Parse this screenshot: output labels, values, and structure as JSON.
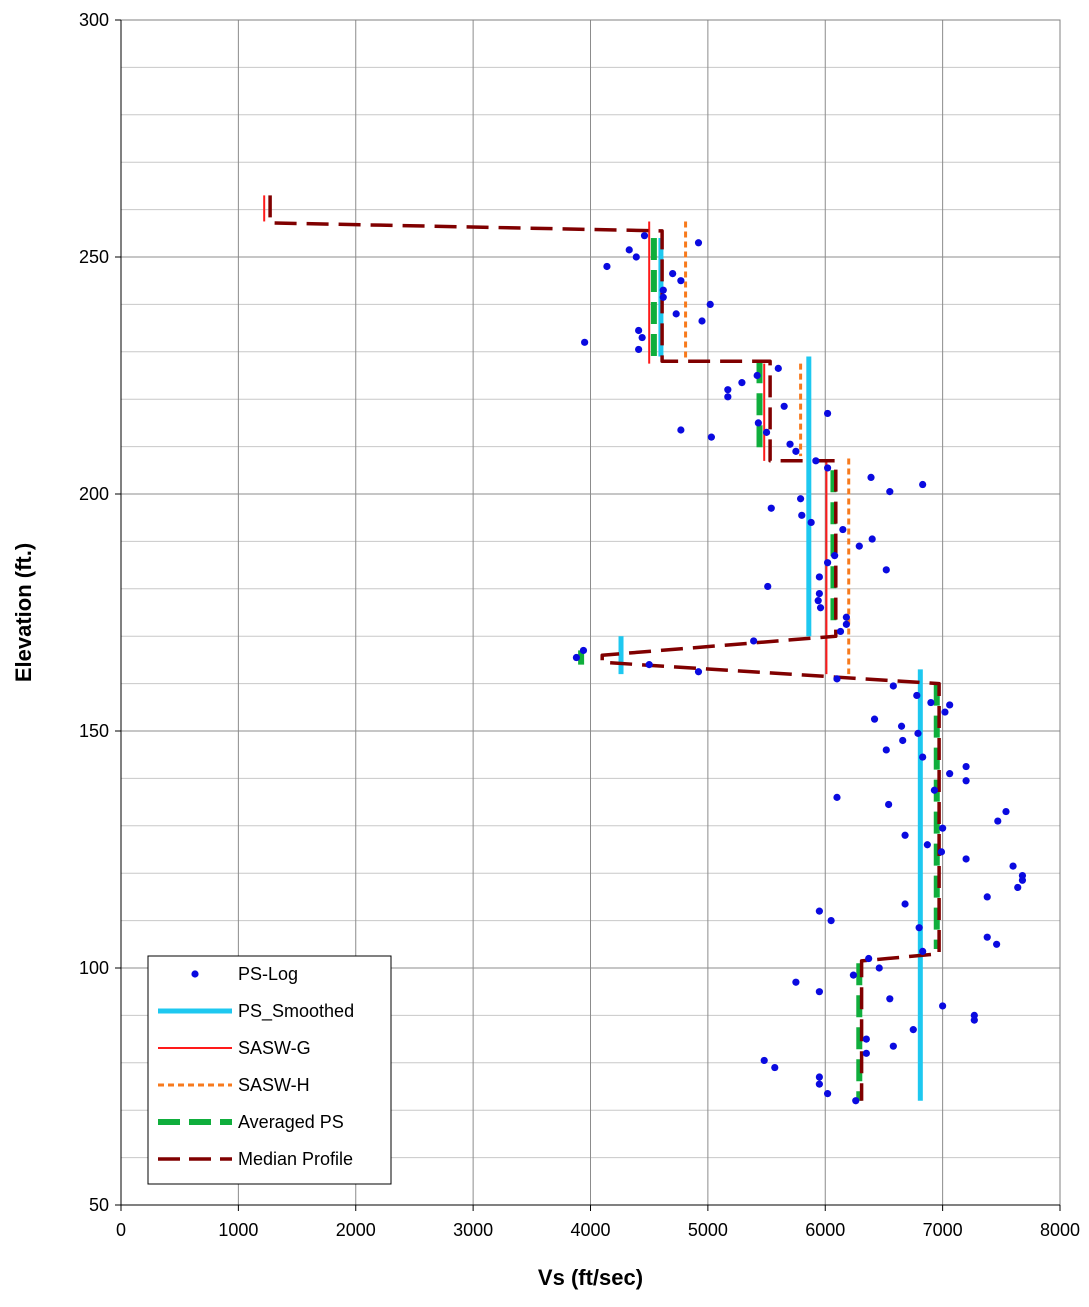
{
  "chart_data": {
    "type": "scatter",
    "xlabel": "Vs (ft/sec)",
    "ylabel": "Elevation (ft.)",
    "xlim": [
      0,
      8000
    ],
    "ylim": [
      50,
      300
    ],
    "xticks": [
      0,
      1000,
      2000,
      3000,
      4000,
      5000,
      6000,
      7000,
      8000
    ],
    "yticks": [
      50,
      100,
      150,
      200,
      250,
      300
    ],
    "x_minor_step": 1000,
    "y_minor_step": 10,
    "grid": true,
    "legend_position": "bottom-left",
    "series": [
      {
        "name": "PS-Log",
        "type": "scatter",
        "color": "#0a0ae0",
        "points": [
          [
            4460,
            254.5
          ],
          [
            4330,
            251.5
          ],
          [
            4920,
            253
          ],
          [
            4140,
            248
          ],
          [
            4390,
            250
          ],
          [
            4700,
            246.5
          ],
          [
            4770,
            245
          ],
          [
            4620,
            243
          ],
          [
            4620,
            241.5
          ],
          [
            5020,
            240
          ],
          [
            4730,
            238
          ],
          [
            4950,
            236.5
          ],
          [
            4410,
            234.5
          ],
          [
            4440,
            233
          ],
          [
            3950,
            232
          ],
          [
            4410,
            230.5
          ],
          [
            5600,
            226.5
          ],
          [
            5420,
            225
          ],
          [
            5290,
            223.5
          ],
          [
            5170,
            222
          ],
          [
            5170,
            220.5
          ],
          [
            5650,
            218.5
          ],
          [
            6020,
            217
          ],
          [
            5430,
            215
          ],
          [
            5500,
            213
          ],
          [
            4770,
            213.5
          ],
          [
            5030,
            212
          ],
          [
            5700,
            210.5
          ],
          [
            5750,
            209
          ],
          [
            5920,
            207
          ],
          [
            6020,
            205.5
          ],
          [
            6390,
            203.5
          ],
          [
            6830,
            202
          ],
          [
            6550,
            200.5
          ],
          [
            5790,
            199
          ],
          [
            5540,
            197
          ],
          [
            5800,
            195.5
          ],
          [
            5880,
            194
          ],
          [
            6150,
            192.5
          ],
          [
            6400,
            190.5
          ],
          [
            6290,
            189
          ],
          [
            6080,
            187
          ],
          [
            6020,
            185.5
          ],
          [
            6520,
            184
          ],
          [
            5950,
            182.5
          ],
          [
            5510,
            180.5
          ],
          [
            5950,
            179
          ],
          [
            5940,
            177.5
          ],
          [
            5960,
            176
          ],
          [
            6180,
            174
          ],
          [
            6180,
            172.5
          ],
          [
            6130,
            171
          ],
          [
            5390,
            169
          ],
          [
            3940,
            167
          ],
          [
            3880,
            165.5
          ],
          [
            4500,
            164
          ],
          [
            4920,
            162.5
          ],
          [
            6100,
            161
          ],
          [
            6580,
            159.5
          ],
          [
            6780,
            157.5
          ],
          [
            6900,
            156
          ],
          [
            7060,
            155.5
          ],
          [
            7020,
            154
          ],
          [
            6420,
            152.5
          ],
          [
            6650,
            151
          ],
          [
            6790,
            149.5
          ],
          [
            6660,
            148
          ],
          [
            6520,
            146
          ],
          [
            6830,
            144.5
          ],
          [
            7200,
            142.5
          ],
          [
            7060,
            141
          ],
          [
            7200,
            139.5
          ],
          [
            6930,
            137.5
          ],
          [
            6100,
            136
          ],
          [
            6540,
            134.5
          ],
          [
            7540,
            133
          ],
          [
            7470,
            131
          ],
          [
            7000,
            129.5
          ],
          [
            6680,
            128
          ],
          [
            6870,
            126
          ],
          [
            6990,
            124.5
          ],
          [
            7200,
            123
          ],
          [
            7600,
            121.5
          ],
          [
            7680,
            119.5
          ],
          [
            7680,
            118.5
          ],
          [
            7640,
            117
          ],
          [
            7380,
            115
          ],
          [
            6680,
            113.5
          ],
          [
            5950,
            112
          ],
          [
            6050,
            110
          ],
          [
            6800,
            108.5
          ],
          [
            7380,
            106.5
          ],
          [
            7460,
            105
          ],
          [
            6830,
            103.5
          ],
          [
            6370,
            102
          ],
          [
            6460,
            100
          ],
          [
            6240,
            98.5
          ],
          [
            5750,
            97
          ],
          [
            7270,
            90
          ],
          [
            7270,
            89
          ],
          [
            5950,
            95
          ],
          [
            6550,
            93.5
          ],
          [
            7000,
            92
          ],
          [
            6750,
            87
          ],
          [
            6350,
            85
          ],
          [
            6580,
            83.5
          ],
          [
            6350,
            82
          ],
          [
            5480,
            80.5
          ],
          [
            5570,
            79
          ],
          [
            5950,
            77
          ],
          [
            5950,
            75.5
          ],
          [
            6020,
            73.5
          ],
          [
            6260,
            72
          ]
        ]
      },
      {
        "name": "PS_Smoothed",
        "type": "line",
        "color": "#1ec8f0",
        "dash": "solid",
        "width": 5,
        "segments": [
          [
            [
              4600,
              254
            ],
            [
              4600,
              229
            ]
          ],
          [
            [
              5860,
              229
            ],
            [
              5860,
              170
            ]
          ],
          [
            [
              4260,
              170
            ],
            [
              4260,
              162
            ]
          ],
          [
            [
              6810,
              163
            ],
            [
              6810,
              72
            ]
          ]
        ]
      },
      {
        "name": "SASW-G",
        "type": "line",
        "color": "#ff1a1a",
        "dash": "solid",
        "width": 2,
        "segments": [
          [
            [
              1220,
              263
            ],
            [
              1220,
              257.5
            ]
          ],
          [
            [
              4500,
              257.5
            ],
            [
              4500,
              227.5
            ]
          ],
          [
            [
              5480,
              227.5
            ],
            [
              5480,
              207
            ]
          ],
          [
            [
              6010,
              207
            ],
            [
              6010,
              162
            ]
          ]
        ]
      },
      {
        "name": "SASW-H",
        "type": "line",
        "color": "#f77a1d",
        "dash": "short",
        "width": 3,
        "segments": [
          [
            [
              4810,
              257.5
            ],
            [
              4810,
              228.5
            ]
          ],
          [
            [
              5790,
              227.5
            ],
            [
              5790,
              208
            ]
          ],
          [
            [
              6200,
              207.5
            ],
            [
              6200,
              162
            ]
          ]
        ]
      },
      {
        "name": "Averaged PS",
        "type": "line",
        "color": "#0fae3c",
        "dash": "long",
        "width": 6,
        "segments": [
          [
            [
              4540,
              254
            ],
            [
              4540,
              229
            ]
          ],
          [
            [
              5440,
              228
            ],
            [
              5440,
              208
            ]
          ],
          [
            [
              6070,
              205
            ],
            [
              6070,
              173
            ]
          ],
          [
            [
              3920,
              167
            ],
            [
              3920,
              164
            ]
          ],
          [
            [
              6950,
              160
            ],
            [
              6950,
              104
            ]
          ],
          [
            [
              6290,
              101
            ],
            [
              6290,
              72
            ]
          ]
        ]
      },
      {
        "name": "Median Profile",
        "type": "line",
        "color": "#800000",
        "dash": "long",
        "width": 3.5,
        "points": [
          [
            1270,
            263
          ],
          [
            1270,
            257.2
          ],
          [
            4610,
            255.5
          ],
          [
            4610,
            228
          ],
          [
            5530,
            228
          ],
          [
            5530,
            207
          ],
          [
            6090,
            207
          ],
          [
            6090,
            170
          ],
          [
            4100,
            166
          ],
          [
            4100,
            164.5
          ],
          [
            6970,
            160
          ],
          [
            6970,
            103
          ],
          [
            6310,
            101.5
          ],
          [
            6310,
            72
          ]
        ]
      }
    ]
  },
  "legend": {
    "items": [
      {
        "label": "PS-Log",
        "key": "ps-log"
      },
      {
        "label": "PS_Smoothed",
        "key": "ps-smoothed"
      },
      {
        "label": "SASW-G",
        "key": "sasw-g"
      },
      {
        "label": "SASW-H",
        "key": "sasw-h"
      },
      {
        "label": "Averaged PS",
        "key": "averaged-ps"
      },
      {
        "label": "Median Profile",
        "key": "median-profile"
      }
    ]
  }
}
